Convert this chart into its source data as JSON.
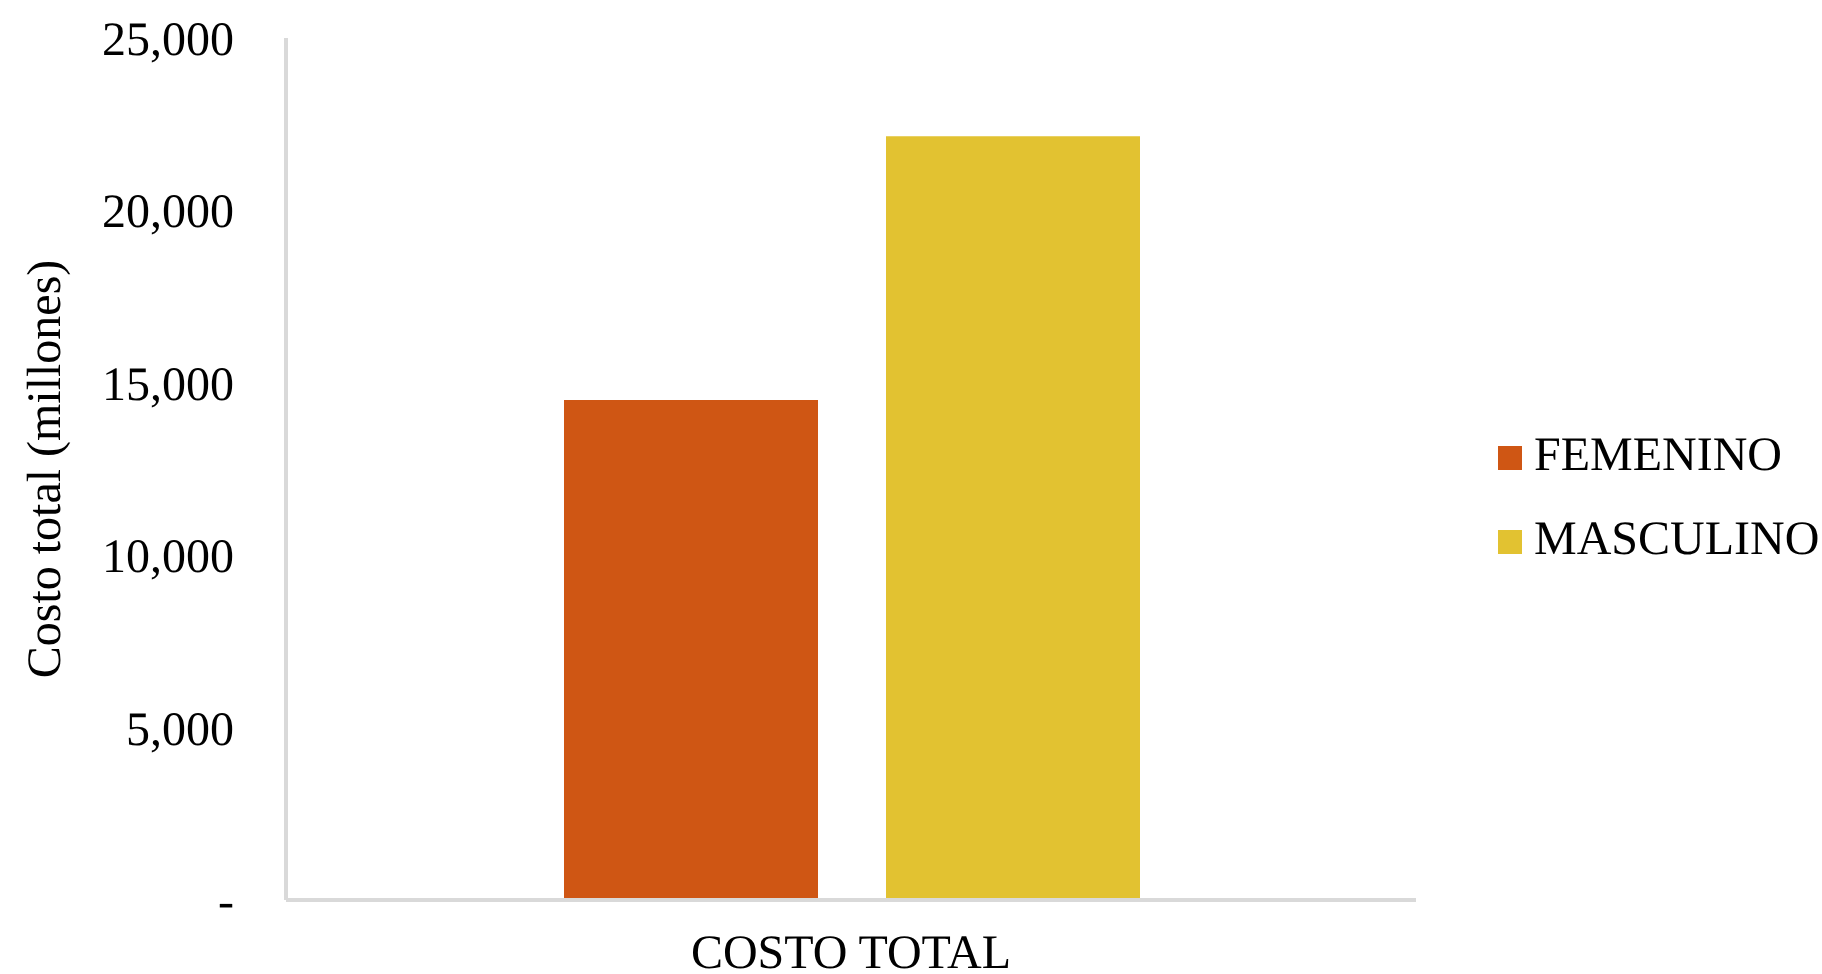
{
  "chart_data": {
    "type": "bar",
    "ylabel": "Costo total (millones)",
    "categories": [
      "COSTO TOTAL"
    ],
    "series": [
      {
        "name": "FEMENINO",
        "color": "#cf5614",
        "values": [
          14500
        ]
      },
      {
        "name": "MASCULINO",
        "color": "#e2c231",
        "values": [
          22150
        ]
      }
    ],
    "ylim": [
      0,
      25000
    ],
    "yticks": [
      {
        "value": 0,
        "label": "-"
      },
      {
        "value": 5000,
        "label": "5,000"
      },
      {
        "value": 10000,
        "label": "10,000"
      },
      {
        "value": 15000,
        "label": "15,000"
      },
      {
        "value": 20000,
        "label": "20,000"
      },
      {
        "value": 25000,
        "label": "25,000"
      }
    ],
    "legend": "right"
  }
}
